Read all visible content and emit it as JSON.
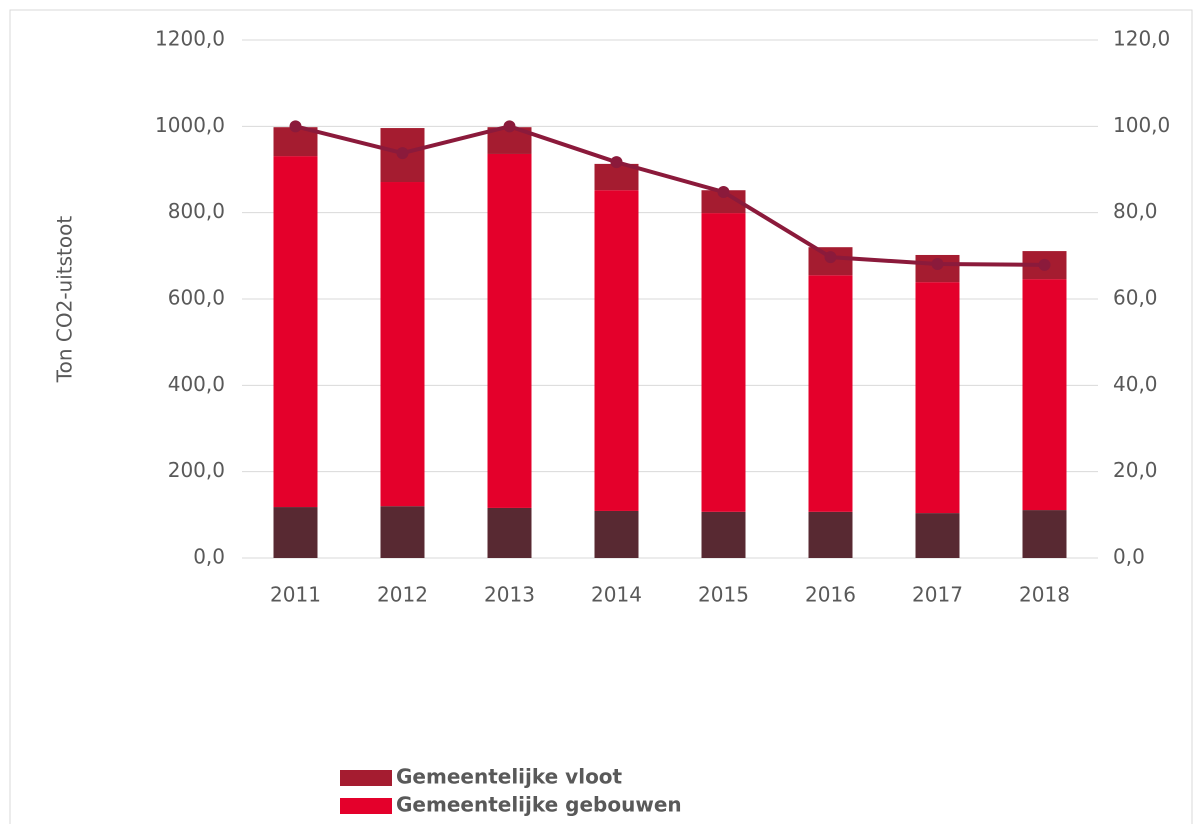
{
  "chart_data": {
    "type": "bar",
    "stacked": true,
    "y_label": "Ton CO2-uitstoot",
    "categories": [
      "2011",
      "2012",
      "2013",
      "2014",
      "2015",
      "2016",
      "2017",
      "2018"
    ],
    "series": [
      {
        "color": "#582932",
        "values": [
          118,
          120,
          116,
          109,
          107,
          107,
          104,
          111
        ]
      },
      {
        "name": "Gemeentelijke gebouwen",
        "color": "#e4002b",
        "values": [
          813,
          751,
          820,
          743,
          692,
          548,
          535,
          535
        ]
      },
      {
        "name": "Gemeentelijke vloot",
        "color": "#a51c30",
        "values": [
          67,
          125,
          62,
          61,
          53,
          65,
          63,
          65
        ]
      },
      {
        "type": "line",
        "axis": "y2",
        "color": "#8b1a3b",
        "values": [
          100.0,
          93.8,
          100.0,
          91.7,
          84.8,
          69.7,
          68.1,
          67.9
        ]
      }
    ],
    "ylim": [
      0,
      1200
    ],
    "yticks": [
      {
        "value": 0,
        "label": "0,0"
      },
      {
        "value": 200,
        "label": "200,0"
      },
      {
        "value": 400,
        "label": "400,0"
      },
      {
        "value": 600,
        "label": "600,0"
      },
      {
        "value": 800,
        "label": "800,0"
      },
      {
        "value": 1000,
        "label": "1000,0"
      },
      {
        "value": 1200,
        "label": "1200,0"
      }
    ],
    "y2lim": [
      0,
      120
    ],
    "y2ticks": [
      {
        "value": 0,
        "label": "0,0"
      },
      {
        "value": 20,
        "label": "20,0"
      },
      {
        "value": 40,
        "label": "40,0"
      },
      {
        "value": 60,
        "label": "60,0"
      },
      {
        "value": 80,
        "label": "80,0"
      },
      {
        "value": 100,
        "label": "100,0"
      },
      {
        "value": 120,
        "label": "120,0"
      }
    ],
    "grid": true
  }
}
